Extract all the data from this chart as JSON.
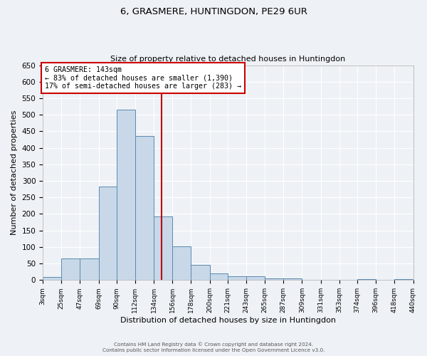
{
  "title": "6, GRASMERE, HUNTINGDON, PE29 6UR",
  "subtitle": "Size of property relative to detached houses in Huntingdon",
  "xlabel": "Distribution of detached houses by size in Huntingdon",
  "ylabel": "Number of detached properties",
  "footer_line1": "Contains HM Land Registry data © Crown copyright and database right 2024.",
  "footer_line2": "Contains public sector information licensed under the Open Government Licence v3.0.",
  "bin_edges": [
    3,
    25,
    47,
    69,
    90,
    112,
    134,
    156,
    178,
    200,
    221,
    243,
    265,
    287,
    309,
    331,
    353,
    374,
    396,
    418,
    440
  ],
  "bin_labels": [
    "3sqm",
    "25sqm",
    "47sqm",
    "69sqm",
    "90sqm",
    "112sqm",
    "134sqm",
    "156sqm",
    "178sqm",
    "200sqm",
    "221sqm",
    "243sqm",
    "265sqm",
    "287sqm",
    "309sqm",
    "331sqm",
    "353sqm",
    "374sqm",
    "396sqm",
    "418sqm",
    "440sqm"
  ],
  "bar_heights": [
    10,
    65,
    65,
    283,
    515,
    435,
    193,
    103,
    45,
    20,
    12,
    12,
    5,
    5,
    0,
    0,
    0,
    3,
    0,
    3
  ],
  "bar_color": "#c8d8e8",
  "bar_edge_color": "#5a8ab0",
  "vline_x": 143,
  "vline_color": "#bb0000",
  "annotation_title": "6 GRASMERE: 143sqm",
  "annotation_line1": "← 83% of detached houses are smaller (1,390)",
  "annotation_line2": "17% of semi-detached houses are larger (283) →",
  "annotation_box_color": "#cc0000",
  "ylim": [
    0,
    650
  ],
  "yticks": [
    0,
    50,
    100,
    150,
    200,
    250,
    300,
    350,
    400,
    450,
    500,
    550,
    600,
    650
  ],
  "background_color": "#eef2f6",
  "plot_bg_color": "#eef2f6",
  "grid_color": "#ffffff",
  "figsize": [
    6.0,
    5.0
  ],
  "dpi": 100
}
